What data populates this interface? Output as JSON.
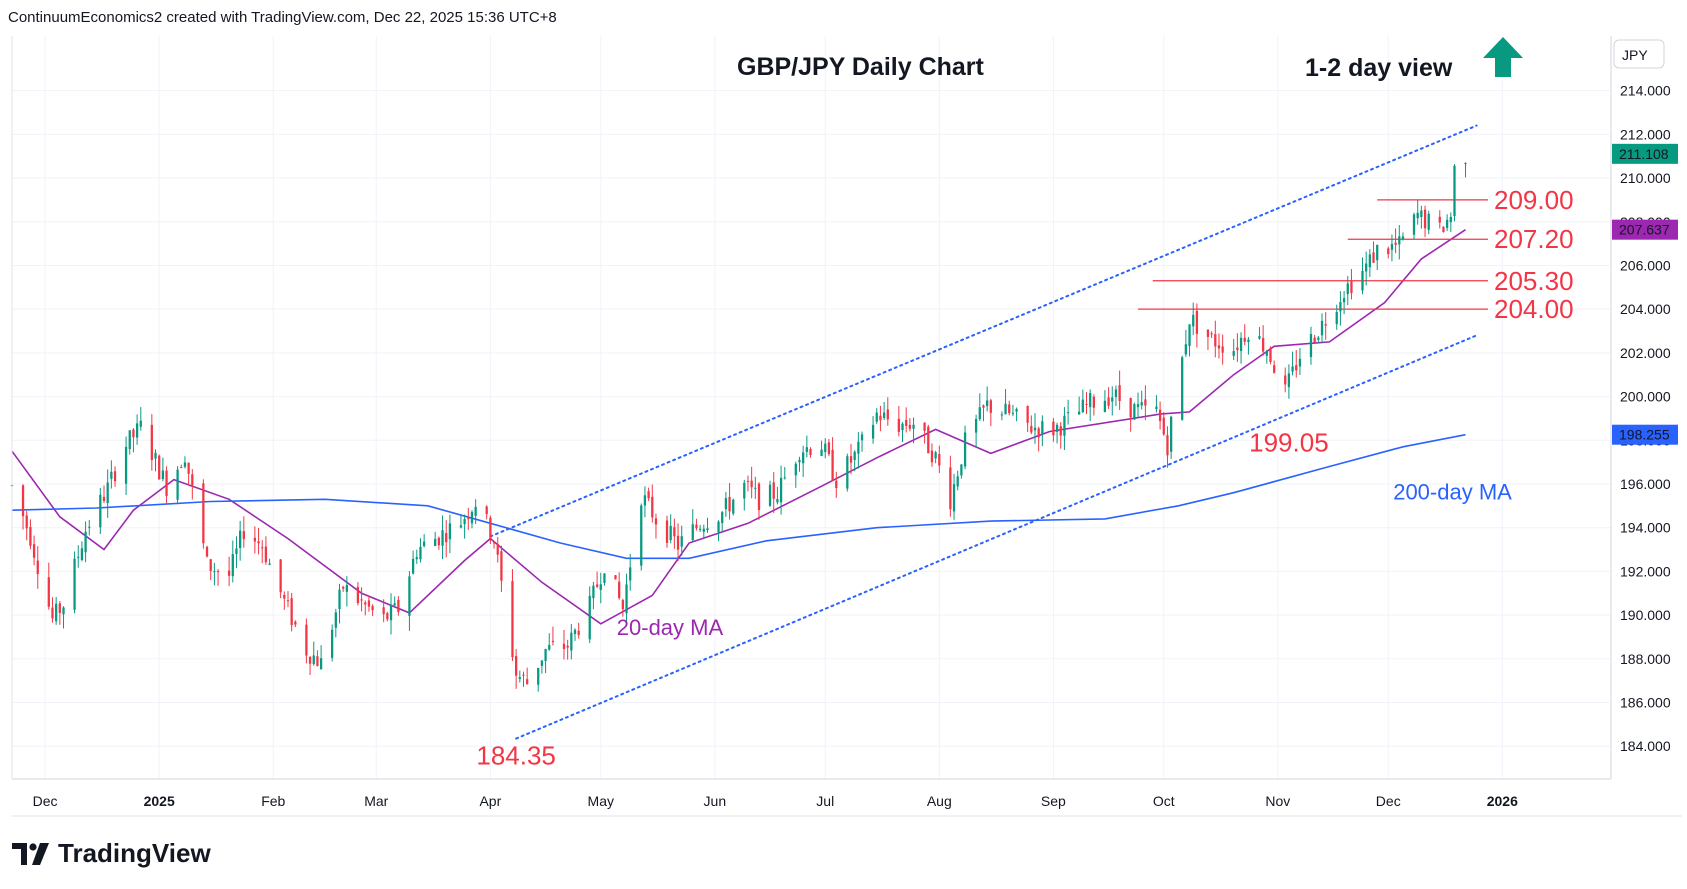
{
  "attribution": "ContinuumEconomics2 created with TradingView.com, Dec 22, 2025 15:36 UTC+8",
  "brand": {
    "name": "TradingView"
  },
  "currency_label": "JPY",
  "colors": {
    "up": "#089981",
    "down": "#f23645",
    "ma20": "#9c27b0",
    "ma200": "#2962ff",
    "channel": "#2962ff",
    "annotation": "#f23645",
    "arrow": "#089981"
  },
  "chart_data": {
    "type": "candlestick",
    "title": "GBP/JPY Daily Chart",
    "subtitle": "1-2 day view",
    "view_direction": "up",
    "ylim": [
      182.5,
      216.5
    ],
    "y_ticks": [
      "184.000",
      "186.000",
      "188.000",
      "190.000",
      "192.000",
      "194.000",
      "196.000",
      "198.000",
      "200.000",
      "202.000",
      "204.000",
      "206.000",
      "208.000",
      "210.000",
      "212.000",
      "214.000"
    ],
    "x_axis": {
      "start": "2024-11-22",
      "end": "2026-01-27",
      "ticks": [
        {
          "date": "2024-12-01",
          "label": "Dec",
          "bold": false
        },
        {
          "date": "2025-01-01",
          "label": "2025",
          "bold": true
        },
        {
          "date": "2025-02-01",
          "label": "Feb",
          "bold": false
        },
        {
          "date": "2025-03-01",
          "label": "Mar",
          "bold": false
        },
        {
          "date": "2025-04-01",
          "label": "Apr",
          "bold": false
        },
        {
          "date": "2025-05-01",
          "label": "May",
          "bold": false
        },
        {
          "date": "2025-06-01",
          "label": "Jun",
          "bold": false
        },
        {
          "date": "2025-07-01",
          "label": "Jul",
          "bold": false
        },
        {
          "date": "2025-08-01",
          "label": "Aug",
          "bold": false
        },
        {
          "date": "2025-09-01",
          "label": "Sep",
          "bold": false
        },
        {
          "date": "2025-10-01",
          "label": "Oct",
          "bold": false
        },
        {
          "date": "2025-11-01",
          "label": "Nov",
          "bold": false
        },
        {
          "date": "2025-12-01",
          "label": "Dec",
          "bold": false
        },
        {
          "date": "2026-01-01",
          "label": "2026",
          "bold": true
        }
      ]
    },
    "price_path": [
      [
        "2024-11-22",
        195.9
      ],
      [
        "2024-11-27",
        193.6
      ],
      [
        "2024-12-03",
        189.8
      ],
      [
        "2024-12-06",
        190.5
      ],
      [
        "2024-12-12",
        193.9
      ],
      [
        "2024-12-18",
        195.8
      ],
      [
        "2024-12-23",
        197.8
      ],
      [
        "2024-12-27",
        198.6
      ],
      [
        "2025-01-03",
        195.9
      ],
      [
        "2025-01-08",
        197.4
      ],
      [
        "2025-01-14",
        192.3
      ],
      [
        "2025-01-20",
        191.8
      ],
      [
        "2025-01-24",
        193.9
      ],
      [
        "2025-01-29",
        193.2
      ],
      [
        "2025-02-04",
        190.6
      ],
      [
        "2025-02-10",
        188.4
      ],
      [
        "2025-02-14",
        187.8
      ],
      [
        "2025-02-20",
        191.3
      ],
      [
        "2025-02-26",
        190.4
      ],
      [
        "2025-03-03",
        189.8
      ],
      [
        "2025-03-07",
        190.3
      ],
      [
        "2025-03-12",
        193.0
      ],
      [
        "2025-03-18",
        193.6
      ],
      [
        "2025-03-24",
        194.3
      ],
      [
        "2025-03-28",
        195.2
      ],
      [
        "2025-04-02",
        193.5
      ],
      [
        "2025-04-04",
        191.4
      ],
      [
        "2025-04-08",
        187.3
      ],
      [
        "2025-04-11",
        186.9
      ],
      [
        "2025-04-16",
        188.4
      ],
      [
        "2025-04-22",
        188.6
      ],
      [
        "2025-04-28",
        190.4
      ],
      [
        "2025-05-02",
        192.4
      ],
      [
        "2025-05-07",
        190.3
      ],
      [
        "2025-05-12",
        195.5
      ],
      [
        "2025-05-16",
        194.4
      ],
      [
        "2025-05-22",
        193.2
      ],
      [
        "2025-05-28",
        194.2
      ],
      [
        "2025-06-03",
        194.7
      ],
      [
        "2025-06-09",
        195.9
      ],
      [
        "2025-06-13",
        195.3
      ],
      [
        "2025-06-18",
        195.6
      ],
      [
        "2025-06-24",
        197.6
      ],
      [
        "2025-06-30",
        197.8
      ],
      [
        "2025-07-04",
        196.2
      ],
      [
        "2025-07-10",
        197.5
      ],
      [
        "2025-07-15",
        199.2
      ],
      [
        "2025-07-21",
        198.7
      ],
      [
        "2025-07-25",
        198.8
      ],
      [
        "2025-07-31",
        197.2
      ],
      [
        "2025-08-04",
        195.3
      ],
      [
        "2025-08-08",
        197.9
      ],
      [
        "2025-08-14",
        199.6
      ],
      [
        "2025-08-20",
        199.2
      ],
      [
        "2025-08-26",
        198.6
      ],
      [
        "2025-09-01",
        198.5
      ],
      [
        "2025-09-05",
        198.9
      ],
      [
        "2025-09-11",
        199.7
      ],
      [
        "2025-09-17",
        200.1
      ],
      [
        "2025-09-23",
        199.4
      ],
      [
        "2025-09-29",
        199.3
      ],
      [
        "2025-10-02",
        197.8
      ],
      [
        "2025-10-06",
        201.7
      ],
      [
        "2025-10-08",
        203.6
      ],
      [
        "2025-10-14",
        202.6
      ],
      [
        "2025-10-20",
        202.2
      ],
      [
        "2025-10-24",
        203.1
      ],
      [
        "2025-10-29",
        202.2
      ],
      [
        "2025-11-03",
        200.2
      ],
      [
        "2025-11-07",
        201.9
      ],
      [
        "2025-11-13",
        203.3
      ],
      [
        "2025-11-19",
        204.9
      ],
      [
        "2025-11-24",
        205.7
      ],
      [
        "2025-11-28",
        206.7
      ],
      [
        "2025-12-04",
        206.9
      ],
      [
        "2025-12-09",
        208.3
      ],
      [
        "2025-12-15",
        207.6
      ],
      [
        "2025-12-18",
        208.3
      ],
      [
        "2025-12-19",
        210.4
      ],
      [
        "2025-12-22",
        211.1
      ]
    ],
    "moving_averages": [
      {
        "name": "20-day MA",
        "color": "#9c27b0",
        "value": 207.637,
        "path": [
          [
            "2024-11-22",
            197.5
          ],
          [
            "2024-12-05",
            194.5
          ],
          [
            "2024-12-17",
            193.0
          ],
          [
            "2024-12-25",
            194.8
          ],
          [
            "2025-01-05",
            196.2
          ],
          [
            "2025-01-20",
            195.3
          ],
          [
            "2025-02-05",
            193.5
          ],
          [
            "2025-02-25",
            191.0
          ],
          [
            "2025-03-10",
            190.1
          ],
          [
            "2025-03-25",
            192.5
          ],
          [
            "2025-04-01",
            193.5
          ],
          [
            "2025-04-15",
            191.5
          ],
          [
            "2025-05-01",
            189.6
          ],
          [
            "2025-05-15",
            190.9
          ],
          [
            "2025-05-25",
            193.3
          ],
          [
            "2025-06-10",
            194.2
          ],
          [
            "2025-06-30",
            195.9
          ],
          [
            "2025-07-15",
            197.2
          ],
          [
            "2025-07-31",
            198.5
          ],
          [
            "2025-08-15",
            197.4
          ],
          [
            "2025-08-31",
            198.4
          ],
          [
            "2025-09-30",
            199.2
          ],
          [
            "2025-10-08",
            199.3
          ],
          [
            "2025-10-20",
            201.0
          ],
          [
            "2025-10-31",
            202.3
          ],
          [
            "2025-11-15",
            202.5
          ],
          [
            "2025-11-30",
            204.3
          ],
          [
            "2025-12-10",
            206.3
          ],
          [
            "2025-12-22",
            207.637
          ]
        ]
      },
      {
        "name": "200-day MA",
        "color": "#2962ff",
        "value": 198.255,
        "path": [
          [
            "2024-11-22",
            194.8
          ],
          [
            "2024-12-15",
            194.9
          ],
          [
            "2025-01-15",
            195.2
          ],
          [
            "2025-02-15",
            195.3
          ],
          [
            "2025-03-15",
            195.0
          ],
          [
            "2025-04-01",
            194.2
          ],
          [
            "2025-04-20",
            193.3
          ],
          [
            "2025-05-08",
            192.6
          ],
          [
            "2025-05-25",
            192.6
          ],
          [
            "2025-06-15",
            193.4
          ],
          [
            "2025-07-15",
            194.0
          ],
          [
            "2025-08-15",
            194.3
          ],
          [
            "2025-09-15",
            194.4
          ],
          [
            "2025-10-05",
            195.0
          ],
          [
            "2025-10-20",
            195.6
          ],
          [
            "2025-11-15",
            196.8
          ],
          [
            "2025-12-05",
            197.7
          ],
          [
            "2025-12-22",
            198.255
          ]
        ]
      }
    ],
    "channel": {
      "upper": [
        [
          "2025-04-01",
          193.6
        ],
        [
          "2025-12-25",
          212.4
        ]
      ],
      "lower": [
        [
          "2025-04-08",
          184.35
        ],
        [
          "2025-12-25",
          202.8
        ]
      ]
    },
    "levels": [
      {
        "label": "209.00",
        "value": 209.0,
        "from": "2025-11-28"
      },
      {
        "label": "207.20",
        "value": 207.2,
        "from": "2025-11-20"
      },
      {
        "label": "205.30",
        "value": 205.3,
        "from": "2025-09-28"
      },
      {
        "label": "204.00",
        "value": 204.0,
        "from": "2025-09-24"
      }
    ],
    "annotations": [
      {
        "label": "184.35",
        "value": 184.35,
        "date": "2025-04-08"
      },
      {
        "label": "199.05",
        "value": 199.05,
        "date": "2025-11-04"
      },
      {
        "label": "20-day MA",
        "value": 189.1,
        "date": "2025-05-01"
      },
      {
        "label": "200-day MA",
        "value": 195.3,
        "date": "2025-11-28"
      }
    ],
    "price_labels": [
      {
        "label": "211.108",
        "value": 211.108,
        "kind": "last"
      },
      {
        "label": "207.637",
        "value": 207.637,
        "kind": "ma20"
      },
      {
        "label": "198.255",
        "value": 198.255,
        "kind": "ma200"
      }
    ]
  }
}
